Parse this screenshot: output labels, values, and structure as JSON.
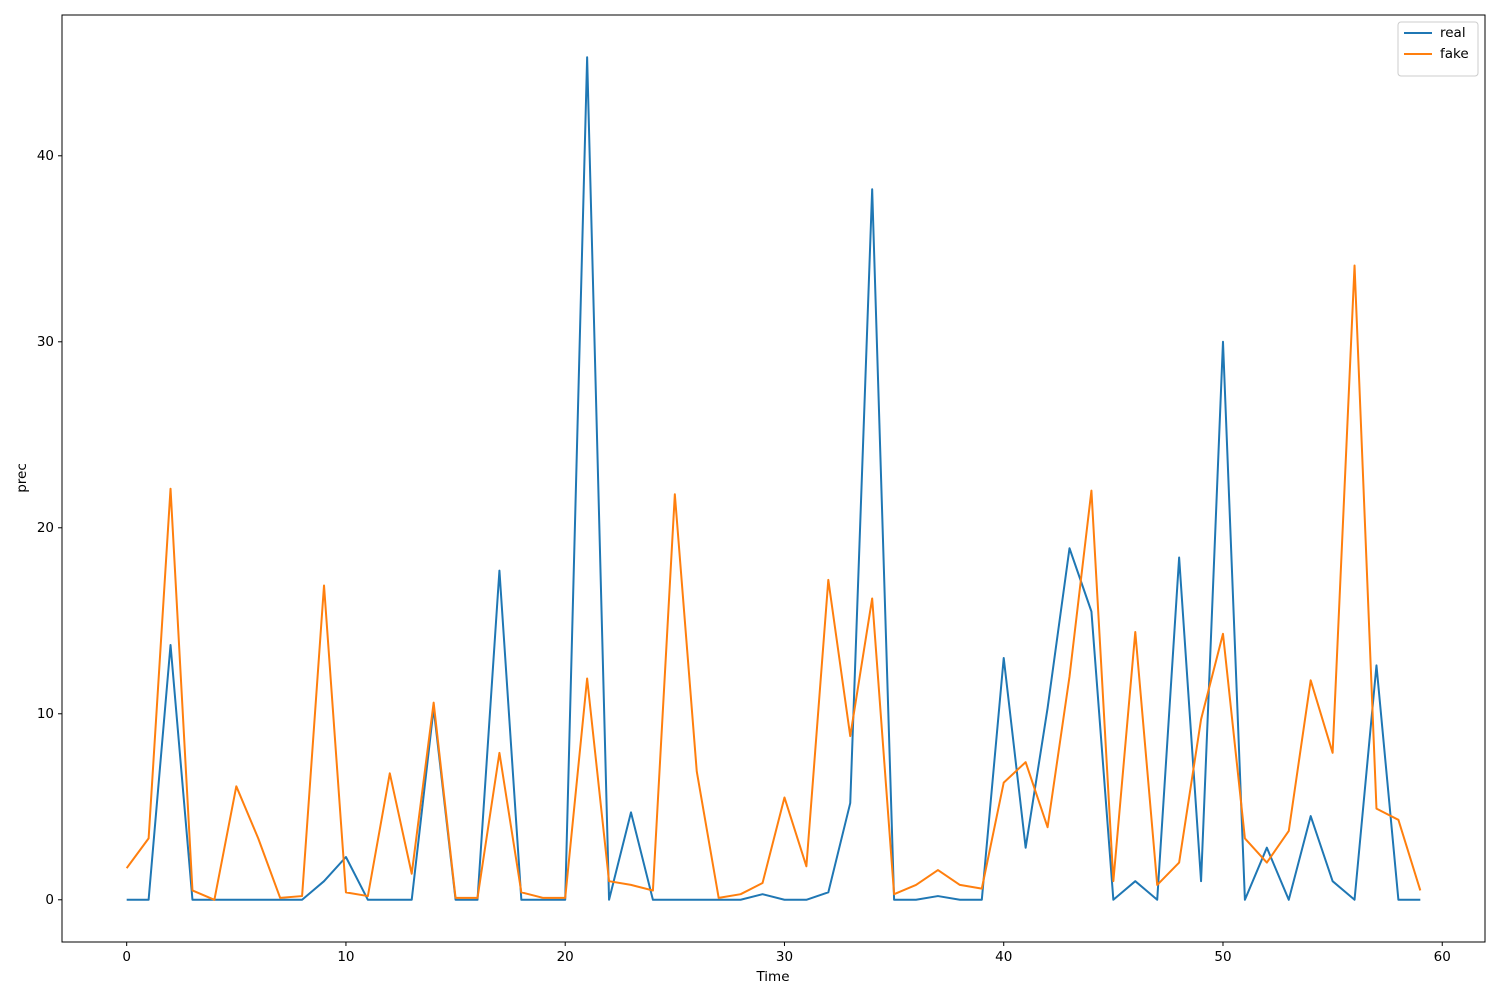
{
  "chart_data": {
    "type": "line",
    "x_label": "Time",
    "y_label": "prec",
    "x": [
      0,
      1,
      2,
      3,
      4,
      5,
      6,
      7,
      8,
      9,
      10,
      11,
      12,
      13,
      14,
      15,
      16,
      17,
      18,
      19,
      20,
      21,
      22,
      23,
      24,
      25,
      26,
      27,
      28,
      29,
      30,
      31,
      32,
      33,
      34,
      35,
      36,
      37,
      38,
      39,
      40,
      41,
      42,
      43,
      44,
      45,
      46,
      47,
      48,
      49,
      50,
      51,
      52,
      53,
      54,
      55,
      56,
      57,
      58,
      59
    ],
    "series": [
      {
        "name": "real",
        "color": "#1f77b4",
        "values": [
          0,
          0,
          13.7,
          0,
          0,
          0,
          0,
          0,
          0,
          1.0,
          2.3,
          0,
          0,
          0,
          10.3,
          0,
          0,
          17.7,
          0,
          0,
          0,
          45.3,
          0,
          4.7,
          0,
          0,
          0,
          0,
          0,
          0.3,
          0,
          0,
          0.4,
          5.2,
          38.2,
          0,
          0,
          0.2,
          0,
          0,
          13.0,
          2.8,
          10.3,
          18.9,
          15.5,
          0,
          1.0,
          0,
          18.4,
          1.0,
          30.0,
          0,
          2.8,
          0,
          4.5,
          1.0,
          0,
          12.6,
          0,
          0
        ]
      },
      {
        "name": "fake",
        "color": "#ff7f0e",
        "values": [
          1.7,
          3.3,
          22.1,
          0.5,
          0,
          6.1,
          3.3,
          0.1,
          0.2,
          16.9,
          0.4,
          0.2,
          6.8,
          1.4,
          10.6,
          0.1,
          0.1,
          7.9,
          0.4,
          0.1,
          0.1,
          11.9,
          1.0,
          0.8,
          0.5,
          21.8,
          6.9,
          0.1,
          0.3,
          0.9,
          5.5,
          1.8,
          17.2,
          8.8,
          16.2,
          0.3,
          0.8,
          1.6,
          0.8,
          0.6,
          6.3,
          7.4,
          3.9,
          12.0,
          22.0,
          1.0,
          14.4,
          0.8,
          2.0,
          9.7,
          14.3,
          3.3,
          2.0,
          3.7,
          11.8,
          7.9,
          34.1,
          4.9,
          4.3,
          0.5
        ]
      }
    ],
    "xlim": [
      -2.95,
      61.95
    ],
    "ylim": [
      -2.27,
      47.57
    ],
    "xticks": [
      0,
      10,
      20,
      30,
      40,
      50,
      60
    ],
    "yticks": [
      0,
      10,
      20,
      30,
      40
    ],
    "legend": "upper right"
  }
}
